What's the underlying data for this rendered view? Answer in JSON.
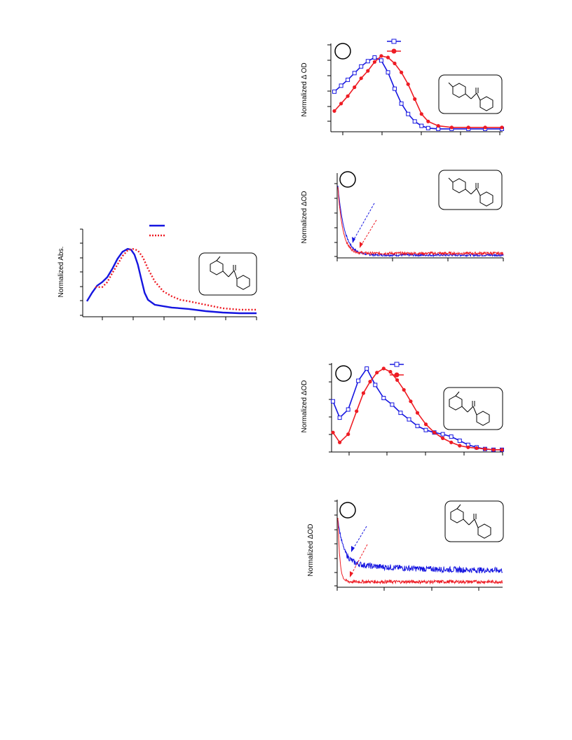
{
  "page": {
    "title": ""
  },
  "chart_data": [
    {
      "id": "abs",
      "type": "line",
      "ylabel": "Normalized Abs.",
      "xlim": [
        0,
        1
      ],
      "ylim": [
        0,
        1.2
      ],
      "series": [
        {
          "style": "solid",
          "color": "#1515e0",
          "points": [
            [
              0,
              0.18
            ],
            [
              0.03,
              0.3
            ],
            [
              0.06,
              0.4
            ],
            [
              0.09,
              0.45
            ],
            [
              0.12,
              0.52
            ],
            [
              0.15,
              0.64
            ],
            [
              0.18,
              0.78
            ],
            [
              0.21,
              0.88
            ],
            [
              0.24,
              0.92
            ],
            [
              0.26,
              0.91
            ],
            [
              0.28,
              0.84
            ],
            [
              0.3,
              0.7
            ],
            [
              0.32,
              0.5
            ],
            [
              0.34,
              0.3
            ],
            [
              0.36,
              0.2
            ],
            [
              0.4,
              0.13
            ],
            [
              0.45,
              0.11
            ],
            [
              0.5,
              0.09
            ],
            [
              0.55,
              0.08
            ],
            [
              0.6,
              0.07
            ],
            [
              0.7,
              0.04
            ],
            [
              0.8,
              0.02
            ],
            [
              0.9,
              0.01
            ],
            [
              1,
              0.01
            ]
          ]
        },
        {
          "style": "dotted",
          "color": "#ee1c24",
          "points": [
            [
              0.05,
              0.38
            ],
            [
              0.09,
              0.38
            ],
            [
              0.12,
              0.45
            ],
            [
              0.15,
              0.58
            ],
            [
              0.18,
              0.7
            ],
            [
              0.21,
              0.82
            ],
            [
              0.24,
              0.9
            ],
            [
              0.27,
              0.92
            ],
            [
              0.3,
              0.9
            ],
            [
              0.33,
              0.8
            ],
            [
              0.36,
              0.64
            ],
            [
              0.4,
              0.46
            ],
            [
              0.45,
              0.32
            ],
            [
              0.5,
              0.25
            ],
            [
              0.55,
              0.2
            ],
            [
              0.6,
              0.18
            ],
            [
              0.7,
              0.13
            ],
            [
              0.8,
              0.08
            ],
            [
              0.9,
              0.06
            ],
            [
              1,
              0.06
            ]
          ]
        }
      ],
      "legend_rows": 2
    },
    {
      "id": "a",
      "type": "line",
      "ylabel": "Normalized Δ OD",
      "xlim": [
        0,
        1
      ],
      "ylim": [
        0,
        1.15
      ],
      "series": [
        {
          "marker": "open-square",
          "color": "#1515e0",
          "points": [
            [
              0,
              0.52
            ],
            [
              0.04,
              0.6
            ],
            [
              0.08,
              0.68
            ],
            [
              0.12,
              0.77
            ],
            [
              0.16,
              0.86
            ],
            [
              0.2,
              0.93
            ],
            [
              0.24,
              0.98
            ],
            [
              0.28,
              0.94
            ],
            [
              0.32,
              0.78
            ],
            [
              0.36,
              0.56
            ],
            [
              0.4,
              0.36
            ],
            [
              0.44,
              0.22
            ],
            [
              0.48,
              0.12
            ],
            [
              0.52,
              0.06
            ],
            [
              0.56,
              0.03
            ],
            [
              0.62,
              0.02
            ],
            [
              0.7,
              0.02
            ],
            [
              0.8,
              0.02
            ],
            [
              0.9,
              0.02
            ],
            [
              1,
              0.02
            ]
          ]
        },
        {
          "marker": "filled-circle",
          "color": "#ee1c24",
          "points": [
            [
              0,
              0.26
            ],
            [
              0.04,
              0.36
            ],
            [
              0.08,
              0.46
            ],
            [
              0.12,
              0.58
            ],
            [
              0.16,
              0.7
            ],
            [
              0.2,
              0.8
            ],
            [
              0.24,
              0.92
            ],
            [
              0.28,
              1.0
            ],
            [
              0.32,
              0.98
            ],
            [
              0.36,
              0.9
            ],
            [
              0.4,
              0.78
            ],
            [
              0.44,
              0.62
            ],
            [
              0.48,
              0.42
            ],
            [
              0.52,
              0.22
            ],
            [
              0.56,
              0.12
            ],
            [
              0.62,
              0.06
            ],
            [
              0.7,
              0.04
            ],
            [
              0.8,
              0.04
            ],
            [
              0.9,
              0.04
            ],
            [
              1,
              0.04
            ]
          ]
        }
      ]
    },
    {
      "id": "b",
      "type": "line",
      "ylabel": "Normalized ΔOD",
      "xlim": [
        0,
        1
      ],
      "ylim": [
        0,
        1.05
      ],
      "series": [
        {
          "style": "noisy-decay",
          "color": "#1515e0",
          "amplitude": 1.0,
          "tau": 0.04,
          "offset": 0.02,
          "noise": 0.008
        },
        {
          "style": "noisy-decay",
          "color": "#ee1c24",
          "amplitude": 0.95,
          "tau": 0.03,
          "offset": 0.045,
          "noise": 0.01
        }
      ]
    },
    {
      "id": "c",
      "type": "line",
      "ylabel": "Normalized ΔOD",
      "xlim": [
        0,
        1
      ],
      "ylim": [
        0,
        1.05
      ],
      "series": [
        {
          "marker": "open-square",
          "color": "#1515e0",
          "points": [
            [
              0,
              0.6
            ],
            [
              0.04,
              0.4
            ],
            [
              0.09,
              0.5
            ],
            [
              0.15,
              0.85
            ],
            [
              0.2,
              1.0
            ],
            [
              0.25,
              0.8
            ],
            [
              0.3,
              0.64
            ],
            [
              0.35,
              0.56
            ],
            [
              0.4,
              0.46
            ],
            [
              0.45,
              0.38
            ],
            [
              0.5,
              0.3
            ],
            [
              0.55,
              0.25
            ],
            [
              0.6,
              0.22
            ],
            [
              0.65,
              0.2
            ],
            [
              0.7,
              0.17
            ],
            [
              0.75,
              0.12
            ],
            [
              0.8,
              0.07
            ],
            [
              0.85,
              0.04
            ],
            [
              0.9,
              0.02
            ],
            [
              0.95,
              0.01
            ],
            [
              1,
              0.01
            ]
          ]
        },
        {
          "marker": "filled-circle",
          "color": "#ee1c24",
          "points": [
            [
              0,
              0.22
            ],
            [
              0.04,
              0.1
            ],
            [
              0.09,
              0.2
            ],
            [
              0.14,
              0.48
            ],
            [
              0.18,
              0.7
            ],
            [
              0.22,
              0.84
            ],
            [
              0.26,
              0.95
            ],
            [
              0.3,
              1.0
            ],
            [
              0.34,
              0.96
            ],
            [
              0.38,
              0.86
            ],
            [
              0.42,
              0.74
            ],
            [
              0.46,
              0.6
            ],
            [
              0.5,
              0.46
            ],
            [
              0.55,
              0.32
            ],
            [
              0.6,
              0.22
            ],
            [
              0.65,
              0.15
            ],
            [
              0.7,
              0.1
            ],
            [
              0.75,
              0.06
            ],
            [
              0.8,
              0.04
            ],
            [
              0.85,
              0.03
            ],
            [
              0.9,
              0.02
            ],
            [
              0.95,
              0.01
            ],
            [
              1,
              0.01
            ]
          ]
        }
      ]
    },
    {
      "id": "d",
      "type": "line",
      "ylabel": "Normalized ΔOD",
      "xlim": [
        0,
        1
      ],
      "ylim": [
        0,
        1.05
      ],
      "series": [
        {
          "style": "noisy-decay",
          "color": "#1515e0",
          "amplitude": 0.65,
          "tau": 0.035,
          "offset": 0.22,
          "tau2": 0.4,
          "amp2": 0.12,
          "noise": 0.022
        },
        {
          "style": "noisy-decay",
          "color": "#ee1c24",
          "amplitude": 0.95,
          "tau": 0.012,
          "offset": 0.06,
          "noise": 0.012
        }
      ]
    }
  ],
  "colors": {
    "blue": "#1515e0",
    "red": "#ee1c24"
  }
}
